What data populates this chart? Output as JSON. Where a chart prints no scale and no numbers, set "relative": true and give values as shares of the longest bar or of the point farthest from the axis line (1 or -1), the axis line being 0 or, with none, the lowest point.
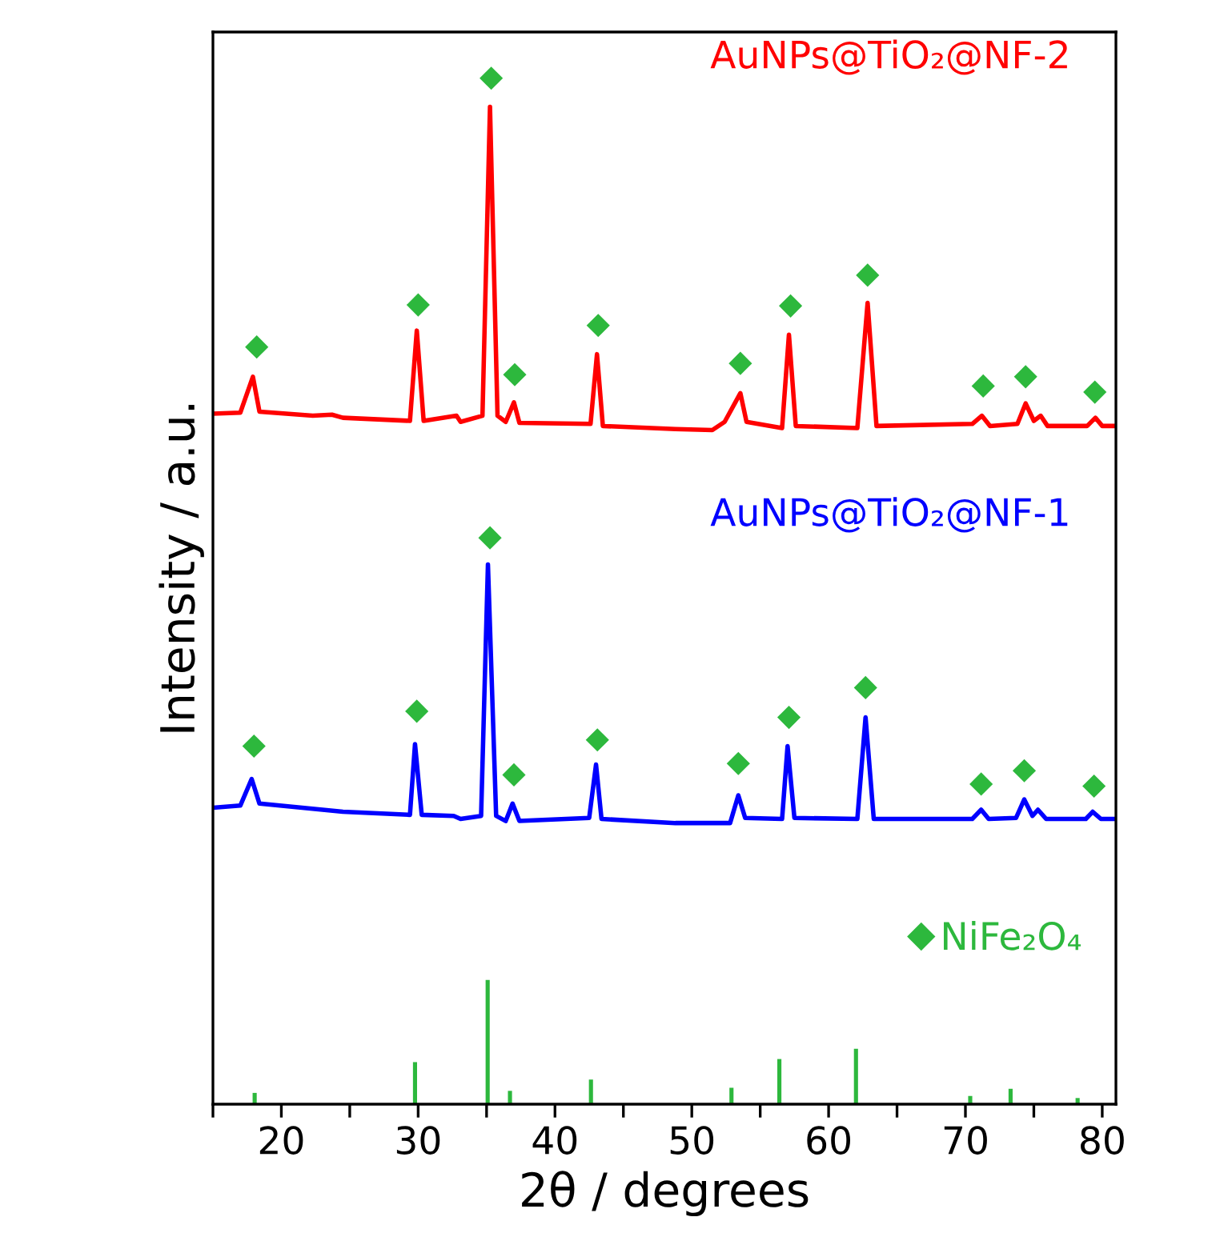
{
  "chart_data": {
    "type": "line",
    "xlabel": "2θ / degrees",
    "ylabel": "Intensity / a.u.",
    "relative": true,
    "xlim": [
      15,
      81
    ],
    "xticks": [
      {
        "value": 15,
        "label": null
      },
      20,
      {
        "value": 25,
        "label": null
      },
      30,
      {
        "value": 35,
        "label": null
      },
      40,
      {
        "value": 45,
        "label": null
      },
      50,
      {
        "value": 55,
        "label": null
      },
      60,
      {
        "value": 65,
        "label": null
      },
      70,
      {
        "value": 75,
        "label": null
      },
      80
    ],
    "tick_labels": "x",
    "grid": false,
    "legend": "bottom right",
    "marker": "none",
    "line_style": "solid",
    "series": [
      {
        "name": "AuNPs@TiO₂@NF-2",
        "color": "#ff0000",
        "x": [
          15.0,
          17.0,
          17.92,
          18.4,
          22.3,
          23.7,
          24.5,
          29.4,
          29.9,
          30.4,
          32.8,
          33.1,
          34.7,
          35.25,
          35.8,
          36.4,
          37.0,
          37.4,
          42.6,
          43.07,
          43.5,
          48.8,
          51.5,
          52.4,
          53.55,
          54.0,
          56.6,
          57.1,
          57.6,
          62.1,
          62.85,
          63.5,
          70.5,
          71.2,
          71.8,
          73.8,
          74.4,
          75.0,
          75.5,
          76.0,
          78.9,
          79.5,
          80.0,
          81.0
        ],
        "values": [
          0.673,
          0.674,
          0.709,
          0.675,
          0.671,
          0.672,
          0.669,
          0.666,
          0.754,
          0.666,
          0.671,
          0.665,
          0.671,
          0.972,
          0.671,
          0.665,
          0.684,
          0.664,
          0.663,
          0.731,
          0.661,
          0.658,
          0.657,
          0.665,
          0.693,
          0.665,
          0.659,
          0.75,
          0.661,
          0.659,
          0.781,
          0.661,
          0.663,
          0.671,
          0.661,
          0.663,
          0.683,
          0.666,
          0.671,
          0.661,
          0.661,
          0.669,
          0.661,
          0.661
        ]
      },
      {
        "name": "AuNPs@TiO₂@NF-1",
        "color": "#0000ff",
        "x": [
          15.0,
          17.0,
          17.83,
          18.4,
          24.5,
          29.4,
          29.77,
          30.26,
          32.6,
          33.1,
          34.6,
          35.1,
          35.7,
          36.4,
          36.9,
          37.4,
          42.5,
          43.0,
          43.4,
          48.8,
          52.8,
          53.4,
          53.9,
          56.6,
          57.0,
          57.5,
          62.1,
          62.7,
          63.3,
          70.5,
          71.15,
          71.7,
          73.7,
          74.3,
          74.9,
          75.3,
          75.9,
          78.8,
          79.3,
          79.9,
          81.0
        ],
        "values": [
          0.289,
          0.291,
          0.317,
          0.293,
          0.285,
          0.282,
          0.351,
          0.282,
          0.281,
          0.278,
          0.281,
          0.526,
          0.281,
          0.276,
          0.293,
          0.276,
          0.279,
          0.331,
          0.278,
          0.274,
          0.274,
          0.301,
          0.279,
          0.278,
          0.349,
          0.279,
          0.278,
          0.377,
          0.278,
          0.278,
          0.287,
          0.278,
          0.279,
          0.297,
          0.281,
          0.287,
          0.278,
          0.278,
          0.285,
          0.278,
          0.278
        ]
      },
      {
        "name": "NiFe₂O₄",
        "type": "scatter",
        "marker": "diamond",
        "color": "#2db83d",
        "x": [
          18.2,
          30.0,
          35.34,
          37.06,
          43.16,
          53.55,
          57.22,
          62.85,
          71.3,
          74.4,
          79.46,
          18.0,
          29.9,
          35.25,
          37.0,
          43.1,
          53.4,
          57.1,
          62.7,
          71.15,
          74.3,
          79.4
        ],
        "values": [
          0.738,
          0.779,
          1.0,
          0.711,
          0.759,
          0.722,
          0.778,
          0.808,
          0.7,
          0.709,
          0.694,
          0.349,
          0.383,
          0.552,
          0.321,
          0.355,
          0.332,
          0.377,
          0.406,
          0.312,
          0.325,
          0.31
        ]
      },
      {
        "type": "bar",
        "color": "#2db83d",
        "x": [
          18.05,
          29.77,
          35.08,
          36.71,
          42.63,
          52.9,
          56.4,
          62.0,
          70.35,
          73.3,
          78.2
        ],
        "values": [
          0.011,
          0.041,
          0.121,
          0.013,
          0.024,
          0.016,
          0.044,
          0.054,
          0.008,
          0.015,
          0.006
        ]
      }
    ]
  }
}
